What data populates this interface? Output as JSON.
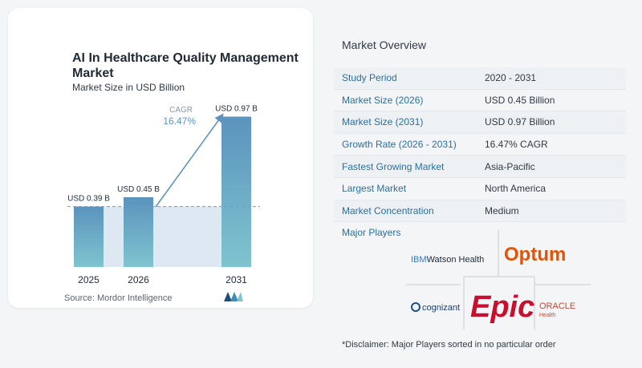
{
  "chart": {
    "title": "AI In Healthcare Quality Management Market",
    "subtitle": "Market Size in USD Billion",
    "cagr_label": "CAGR",
    "cagr_value": "16.47%",
    "source": "Source: Mordor Intelligence"
  },
  "chart_data": {
    "type": "bar",
    "categories": [
      "2025",
      "2026",
      "2031"
    ],
    "values": [
      0.39,
      0.45,
      0.97
    ],
    "data_labels": [
      "USD 0.39 B",
      "USD 0.45 B",
      "USD 0.97 B"
    ],
    "title": "AI In Healthcare Quality Management Market",
    "subtitle": "Market Size in USD Billion",
    "xlabel": "",
    "ylabel": "",
    "ylim": [
      0,
      1.05
    ],
    "grid": false,
    "annotation": "CAGR 16.47%"
  },
  "overview": {
    "title": "Market Overview",
    "rows": [
      {
        "label": "Study Period",
        "value": "2020 - 2031"
      },
      {
        "label": "Market Size (2026)",
        "value": "USD 0.45 Billion"
      },
      {
        "label": "Market Size (2031)",
        "value": "USD 0.97 Billion"
      },
      {
        "label": "Growth Rate (2026 - 2031)",
        "value": "16.47% CAGR"
      },
      {
        "label": "Fastest Growing Market",
        "value": "Asia-Pacific"
      },
      {
        "label": "Largest Market",
        "value": "North America"
      },
      {
        "label": "Market Concentration",
        "value": "Medium"
      }
    ]
  },
  "players": {
    "title": "Major Players",
    "logos": {
      "ibm_prefix": "IBM",
      "ibm_rest": "Watson Health",
      "optum": "Optum",
      "cognizant": "cognizant",
      "epic": "Epic",
      "oracle": "ORACLE",
      "oracle_sub": "Health"
    }
  },
  "disclaimer": "*Disclaimer: Major Players sorted in no particular order",
  "colors": {
    "bar_top": "#5b93bd",
    "bar_bottom": "#7fc4cf",
    "band": "#dde8f2",
    "arrow": "#5b93bd",
    "label_blue": "#2a6f9a",
    "optum": "#e35205",
    "epic": "#c8102e"
  }
}
